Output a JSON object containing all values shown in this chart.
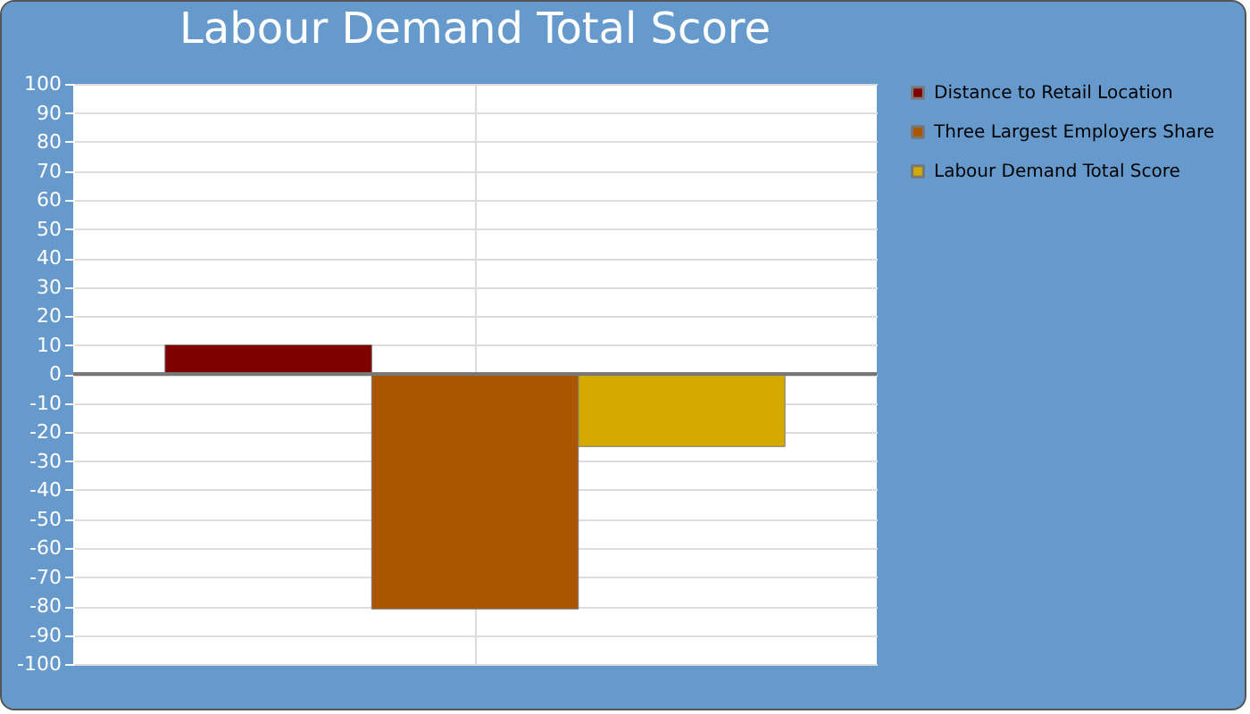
{
  "chart_data": {
    "type": "bar",
    "title": "Labour Demand Total Score",
    "categories": [
      null
    ],
    "series": [
      {
        "name": "Distance to Retail Location",
        "color": "#800000",
        "values": [
          10
        ]
      },
      {
        "name": "Three Largest Employers Share",
        "color": "#aa5500",
        "values": [
          -81
        ]
      },
      {
        "name": "Labour Demand Total Score",
        "color": "#d4aa00",
        "values": [
          -25
        ]
      }
    ],
    "ylim": [
      -100,
      100
    ],
    "yticks": [
      -100,
      -90,
      -80,
      -70,
      -60,
      -50,
      -40,
      -30,
      -20,
      -10,
      0,
      10,
      20,
      30,
      40,
      50,
      60,
      70,
      80,
      90,
      100
    ],
    "ref_lines": [
      {
        "axis": "y",
        "value": 0,
        "color": "#777777"
      }
    ],
    "grid": true,
    "legend": "top right",
    "tick_labels": "y"
  }
}
